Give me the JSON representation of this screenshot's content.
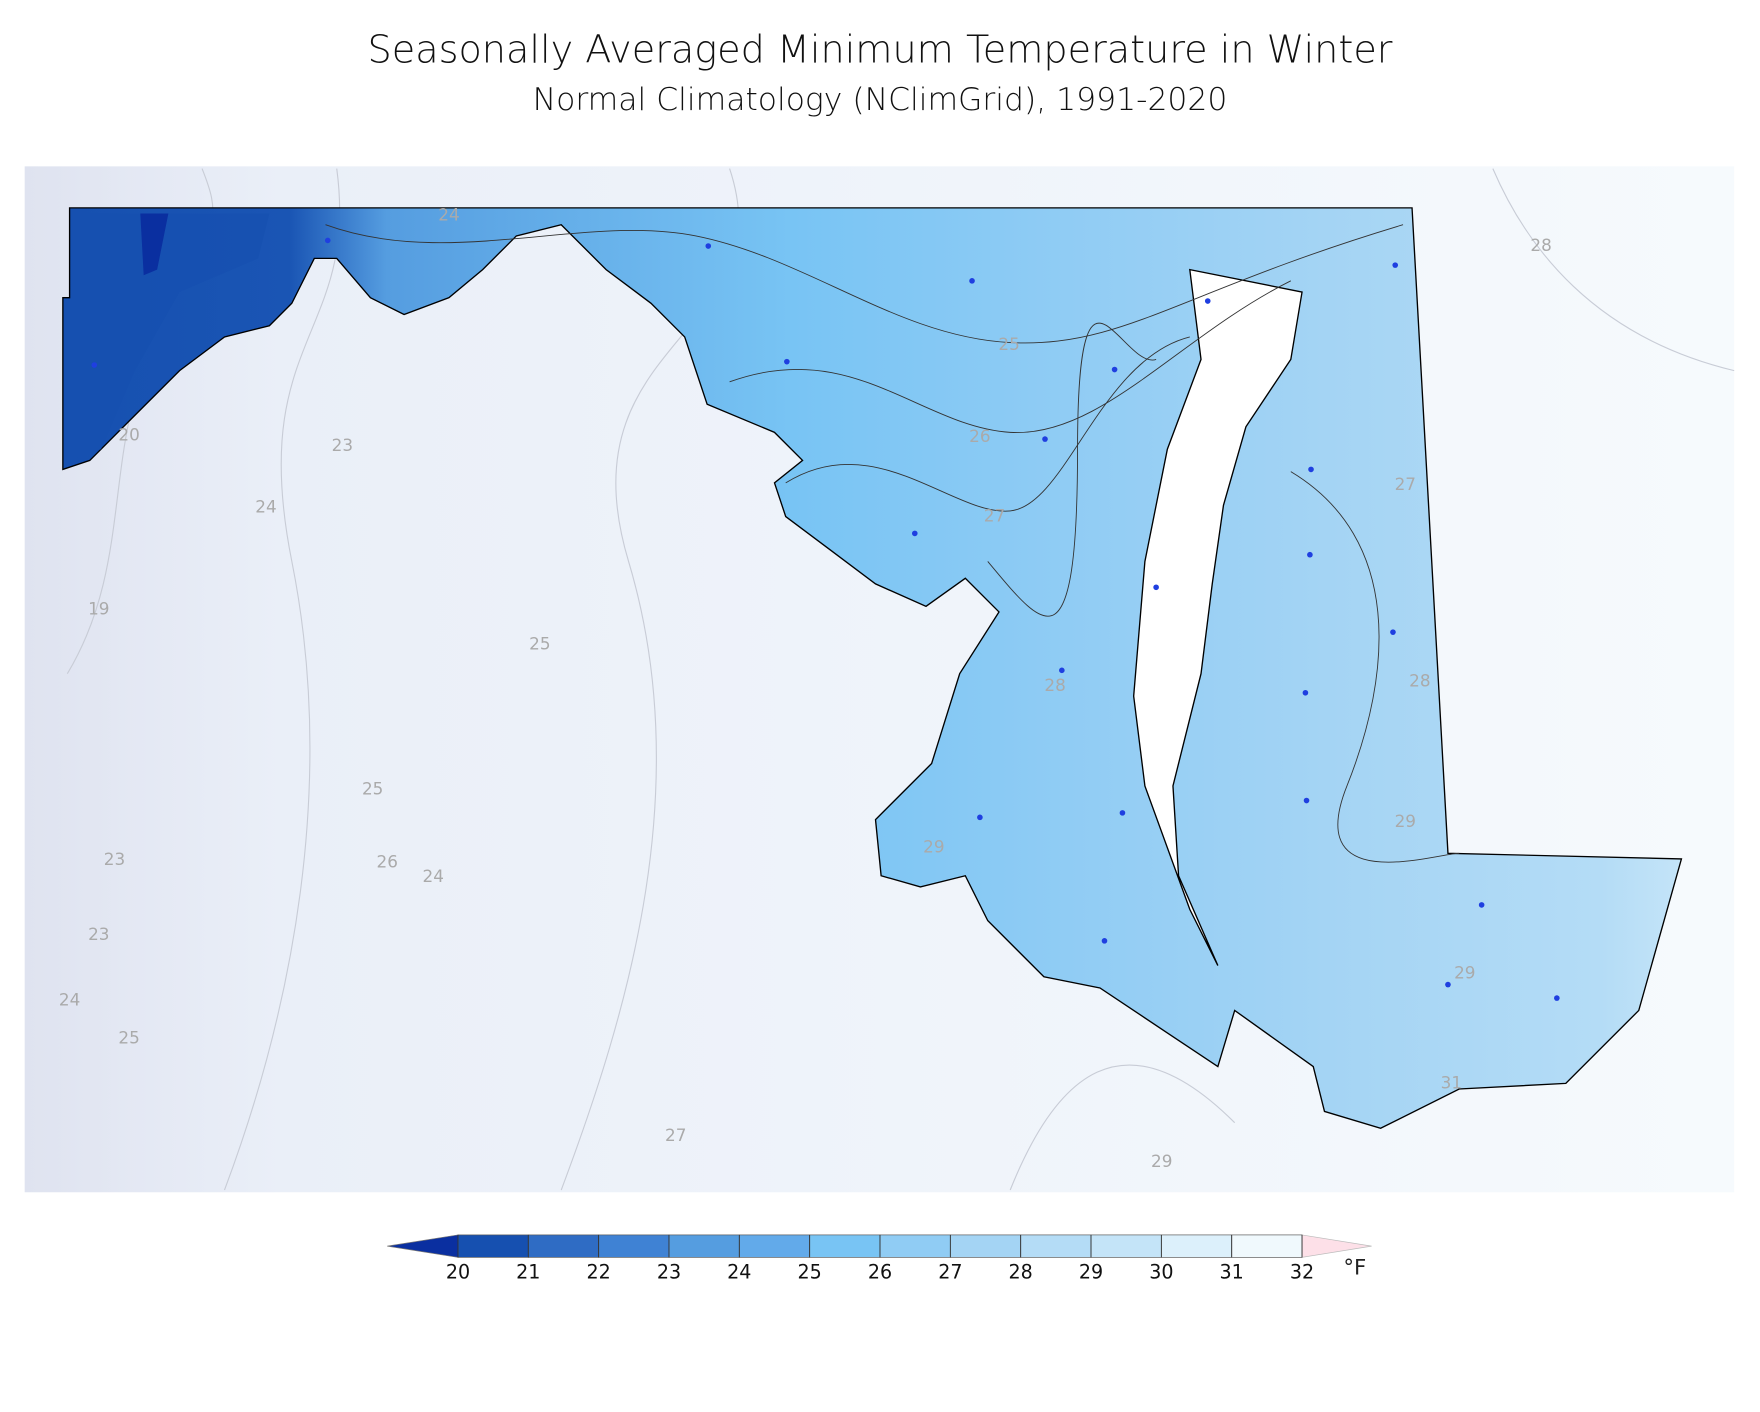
{
  "title": "Seasonally Averaged Minimum Temperature in Winter",
  "subtitle": "Normal Climatology (NClimGrid), 1991-2020",
  "contour_labels": [
    24,
    20,
    23,
    24,
    19,
    25,
    25,
    23,
    26,
    24,
    23,
    24,
    25,
    27,
    29,
    28,
    25,
    26,
    27,
    27,
    28,
    28,
    29,
    29,
    29,
    31
  ],
  "colorbar": {
    "ticks": [
      20,
      21,
      22,
      23,
      24,
      25,
      26,
      27,
      28,
      29,
      30,
      31,
      32
    ],
    "colors": [
      "#1650b0",
      "#2f6cc4",
      "#3f82d4",
      "#559de0",
      "#62aaea",
      "#78c4f4",
      "#90ccf4",
      "#a4d4f4",
      "#b4dcf6",
      "#c4e4f8",
      "#dcf0fb",
      "#f0f9fd"
    ],
    "extend_colors": [
      "#0a2fa0",
      "#fde0e8"
    ],
    "unit": "°F"
  }
}
